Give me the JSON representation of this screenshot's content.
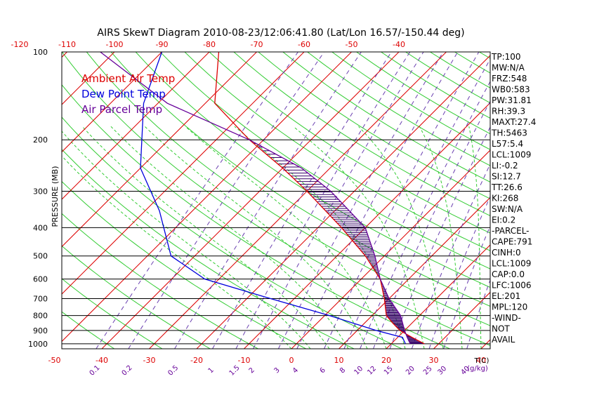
{
  "chart_data": {
    "type": "skew-t",
    "title": "AIRS SkewT Diagram 2010-08-23/12:06:41.80 (Lat/Lon 16.57/-150.44 deg)",
    "ylabel": "PRESSURE (MB)",
    "x_bottom_unit": "T(C)",
    "mixing_ratio_unit": "(g/kg)",
    "pressure_ticks": [
      "100",
      "200",
      "300",
      "400",
      "500",
      "600",
      "700",
      "800",
      "900",
      "1000"
    ],
    "pressure_lines": [
      100,
      200,
      300,
      400,
      500,
      600,
      700,
      800,
      900,
      1000
    ],
    "temp_ticks_bottom": [
      "-50",
      "-40",
      "-30",
      "-20",
      "-10",
      "0",
      "10",
      "20",
      "30",
      "40"
    ],
    "temp_ticks_top": [
      "-120",
      "-110",
      "-100",
      "-90",
      "-80",
      "-70",
      "-60",
      "-50",
      "-40"
    ],
    "mixing_ratio_labels": [
      "0.1",
      "0.2",
      "0.5",
      "1",
      "1.5",
      "2",
      "3",
      "4",
      "6",
      "8",
      "10",
      "12",
      "15",
      "20",
      "25",
      "30",
      "40"
    ],
    "legend": [
      {
        "name": "Ambient Air Temp",
        "color": "#dd0000"
      },
      {
        "name": "Dew Point Temp",
        "color": "#0000dd"
      },
      {
        "name": "Air Parcel Temp",
        "color": "#660099"
      }
    ],
    "indices": [
      "TP:100",
      "MW:N/A",
      "FRZ:548",
      "WB0:583",
      "PW:31.81",
      "RH:39.3",
      "MAXT:27.4",
      "TH:5463",
      "L57:5.4",
      "LCL:1009",
      "LI:-0.2",
      "SI:12.7",
      "TT:26.6",
      "KI:268",
      "SW:N/A",
      "EI:0.2",
      "-PARCEL-",
      "CAPE:791",
      "CINH:0",
      "LCL:1009",
      "CAP:0.0",
      "LFC:1006",
      "EL:201",
      "MPL:120",
      "-WIND-",
      "NOT",
      "AVAIL"
    ],
    "series": [
      {
        "key": "ambient",
        "color": "#dd0000",
        "points": [
          [
            100,
            -78
          ],
          [
            150,
            -68
          ],
          [
            200,
            -53
          ],
          [
            250,
            -40
          ],
          [
            300,
            -30
          ],
          [
            400,
            -15
          ],
          [
            500,
            -4
          ],
          [
            600,
            4
          ],
          [
            700,
            9
          ],
          [
            800,
            13
          ],
          [
            850,
            16
          ],
          [
            900,
            19
          ],
          [
            950,
            23
          ],
          [
            1000,
            27
          ]
        ]
      },
      {
        "key": "dewpoint",
        "color": "#0000dd",
        "points": [
          [
            100,
            -90
          ],
          [
            150,
            -83
          ],
          [
            250,
            -70
          ],
          [
            350,
            -57
          ],
          [
            500,
            -45
          ],
          [
            600,
            -33
          ],
          [
            700,
            -15
          ],
          [
            800,
            1
          ],
          [
            900,
            14
          ],
          [
            950,
            21
          ],
          [
            1000,
            23
          ]
        ]
      },
      {
        "key": "parcel",
        "color": "#660099",
        "points": [
          [
            100,
            -103
          ],
          [
            150,
            -78
          ],
          [
            200,
            -53
          ],
          [
            250,
            -36
          ],
          [
            300,
            -25
          ],
          [
            400,
            -10
          ],
          [
            500,
            -2
          ],
          [
            600,
            4
          ],
          [
            700,
            10
          ],
          [
            800,
            16
          ],
          [
            900,
            20
          ],
          [
            950,
            22
          ],
          [
            1000,
            24
          ]
        ]
      }
    ]
  }
}
